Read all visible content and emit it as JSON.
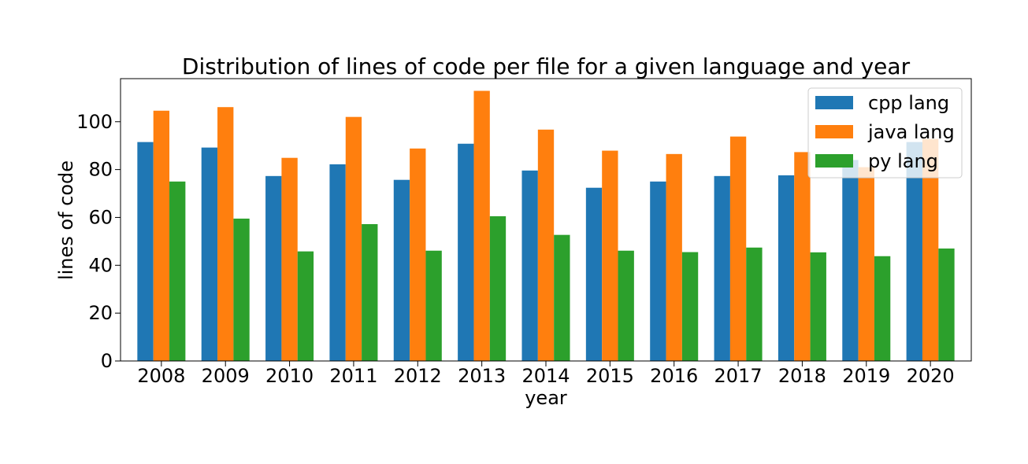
{
  "chart_data": {
    "type": "bar",
    "title": "Distribution of lines of code per file for a given language and year",
    "xlabel": "year",
    "ylabel": "lines of code",
    "ylim": [
      0,
      118
    ],
    "yticks": [
      0,
      20,
      40,
      60,
      80,
      100
    ],
    "categories": [
      "2008",
      "2009",
      "2010",
      "2011",
      "2012",
      "2013",
      "2014",
      "2015",
      "2016",
      "2017",
      "2018",
      "2019",
      "2020"
    ],
    "series": [
      {
        "name": "cpp lang",
        "color": "#1f77b4",
        "values": [
          91.5,
          89.2,
          77.3,
          82.2,
          75.7,
          90.8,
          79.6,
          72.4,
          75.0,
          77.3,
          77.6,
          84.0,
          91.5
        ]
      },
      {
        "name": "java lang",
        "color": "#ff7f0e",
        "values": [
          104.6,
          106.1,
          84.9,
          102.0,
          88.8,
          112.9,
          96.7,
          87.9,
          86.5,
          93.8,
          87.3,
          81.0,
          92.8
        ]
      },
      {
        "name": "py lang",
        "color": "#2ca02c",
        "values": [
          75.0,
          59.5,
          45.8,
          57.2,
          46.1,
          60.5,
          52.7,
          46.1,
          45.5,
          47.4,
          45.4,
          43.8,
          47.0
        ]
      }
    ],
    "legend_position": "top-right",
    "grid": false
  }
}
